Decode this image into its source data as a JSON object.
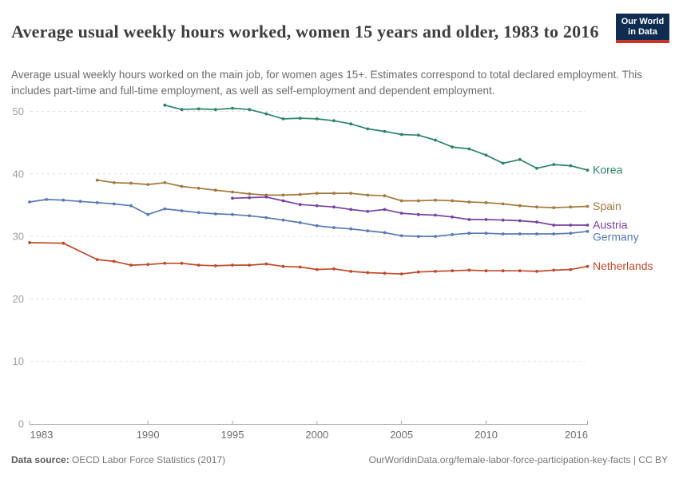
{
  "header": {
    "title": "Average usual weekly hours worked, women 15 years and older, 1983 to 2016",
    "subtitle": "Average usual weekly hours worked on the main job, for women ages 15+. Estimates correspond to total declared employment. This includes part-time and full-time employment, as well as self-employment and dependent employment.",
    "logo": {
      "line1": "Our World",
      "line2": "in Data",
      "bg_color": "#0e2d51",
      "stripe_color": "#c9352b"
    }
  },
  "footer": {
    "datasource_label": "Data source:",
    "datasource_value": " OECD Labor Force Statistics (2017)",
    "url_text": "OurWorldinData.org/female-labor-force-participation-key-facts | CC BY"
  },
  "chart_data": {
    "type": "line",
    "title": "Average usual weekly hours worked, women 15 years and older, 1983 to 2016",
    "xlabel": "",
    "ylabel": "",
    "xlim": [
      1983,
      2016
    ],
    "ylim": [
      0,
      52
    ],
    "yticks": [
      0,
      10,
      20,
      30,
      40,
      50
    ],
    "xticks": [
      1983,
      1990,
      1995,
      2000,
      2005,
      2010,
      2016
    ],
    "grid": "horizontal-dashed",
    "legend_position": "labels-at-line-ends",
    "colors": {
      "gridline": "#dedede",
      "axis": "#a6a6a6",
      "ytick_label": "#9e9e9e",
      "xtick_label": "#6f6f6f"
    },
    "series": [
      {
        "name": "Korea",
        "color": "#2c8465",
        "points": [
          [
            1991,
            51.0
          ],
          [
            1992,
            50.3
          ],
          [
            1993,
            50.4
          ],
          [
            1994,
            50.3
          ],
          [
            1995,
            50.5
          ],
          [
            1996,
            50.3
          ],
          [
            1997,
            49.6
          ],
          [
            1998,
            48.8
          ],
          [
            1999,
            48.9
          ],
          [
            2000,
            48.8
          ],
          [
            2001,
            48.5
          ],
          [
            2002,
            48.0
          ],
          [
            2003,
            47.2
          ],
          [
            2004,
            46.8
          ],
          [
            2005,
            46.3
          ],
          [
            2006,
            46.2
          ],
          [
            2007,
            45.4
          ],
          [
            2008,
            44.3
          ],
          [
            2009,
            44.0
          ],
          [
            2010,
            43.0
          ],
          [
            2011,
            41.7
          ],
          [
            2012,
            42.3
          ],
          [
            2013,
            40.9
          ],
          [
            2014,
            41.5
          ],
          [
            2015,
            41.3
          ],
          [
            2016,
            40.6
          ]
        ]
      },
      {
        "name": "Spain",
        "color": "#a2793d",
        "points": [
          [
            1987,
            39.0
          ],
          [
            1988,
            38.6
          ],
          [
            1989,
            38.5
          ],
          [
            1990,
            38.3
          ],
          [
            1991,
            38.6
          ],
          [
            1992,
            38.0
          ],
          [
            1993,
            37.7
          ],
          [
            1994,
            37.4
          ],
          [
            1995,
            37.1
          ],
          [
            1996,
            36.8
          ],
          [
            1997,
            36.6
          ],
          [
            1998,
            36.6
          ],
          [
            1999,
            36.7
          ],
          [
            2000,
            36.9
          ],
          [
            2001,
            36.9
          ],
          [
            2002,
            36.9
          ],
          [
            2003,
            36.6
          ],
          [
            2004,
            36.5
          ],
          [
            2005,
            35.7
          ],
          [
            2006,
            35.7
          ],
          [
            2007,
            35.8
          ],
          [
            2008,
            35.7
          ],
          [
            2009,
            35.5
          ],
          [
            2010,
            35.4
          ],
          [
            2011,
            35.2
          ],
          [
            2012,
            34.9
          ],
          [
            2013,
            34.7
          ],
          [
            2014,
            34.6
          ],
          [
            2015,
            34.7
          ],
          [
            2016,
            34.8
          ]
        ]
      },
      {
        "name": "Austria",
        "color": "#7940a1",
        "points": [
          [
            1995,
            36.1
          ],
          [
            1996,
            36.2
          ],
          [
            1997,
            36.3
          ],
          [
            1998,
            35.7
          ],
          [
            1999,
            35.1
          ],
          [
            2000,
            34.9
          ],
          [
            2001,
            34.7
          ],
          [
            2002,
            34.3
          ],
          [
            2003,
            34.0
          ],
          [
            2004,
            34.3
          ],
          [
            2005,
            33.7
          ],
          [
            2006,
            33.5
          ],
          [
            2007,
            33.4
          ],
          [
            2008,
            33.1
          ],
          [
            2009,
            32.7
          ],
          [
            2010,
            32.7
          ],
          [
            2011,
            32.6
          ],
          [
            2012,
            32.5
          ],
          [
            2013,
            32.3
          ],
          [
            2014,
            31.8
          ],
          [
            2015,
            31.8
          ],
          [
            2016,
            31.8
          ]
        ]
      },
      {
        "name": "Germany",
        "color": "#5879b4",
        "points": [
          [
            1983,
            35.5
          ],
          [
            1984,
            35.9
          ],
          [
            1985,
            35.8
          ],
          [
            1986,
            35.6
          ],
          [
            1987,
            35.4
          ],
          [
            1988,
            35.2
          ],
          [
            1989,
            34.9
          ],
          [
            1990,
            33.5
          ],
          [
            1991,
            34.4
          ],
          [
            1992,
            34.1
          ],
          [
            1993,
            33.8
          ],
          [
            1994,
            33.6
          ],
          [
            1995,
            33.5
          ],
          [
            1996,
            33.3
          ],
          [
            1997,
            33.0
          ],
          [
            1998,
            32.6
          ],
          [
            1999,
            32.2
          ],
          [
            2000,
            31.7
          ],
          [
            2001,
            31.4
          ],
          [
            2002,
            31.2
          ],
          [
            2003,
            30.9
          ],
          [
            2004,
            30.6
          ],
          [
            2005,
            30.1
          ],
          [
            2006,
            30.0
          ],
          [
            2007,
            30.0
          ],
          [
            2008,
            30.3
          ],
          [
            2009,
            30.5
          ],
          [
            2010,
            30.5
          ],
          [
            2011,
            30.4
          ],
          [
            2012,
            30.4
          ],
          [
            2013,
            30.4
          ],
          [
            2014,
            30.4
          ],
          [
            2015,
            30.5
          ],
          [
            2016,
            30.8
          ]
        ]
      },
      {
        "name": "Netherlands",
        "color": "#bf4a2b",
        "points": [
          [
            1983,
            29.0
          ],
          [
            1985,
            28.9
          ],
          [
            1987,
            26.3
          ],
          [
            1988,
            26.0
          ],
          [
            1989,
            25.4
          ],
          [
            1990,
            25.5
          ],
          [
            1991,
            25.7
          ],
          [
            1992,
            25.7
          ],
          [
            1993,
            25.4
          ],
          [
            1994,
            25.3
          ],
          [
            1995,
            25.4
          ],
          [
            1996,
            25.4
          ],
          [
            1997,
            25.6
          ],
          [
            1998,
            25.2
          ],
          [
            1999,
            25.1
          ],
          [
            2000,
            24.7
          ],
          [
            2001,
            24.8
          ],
          [
            2002,
            24.4
          ],
          [
            2003,
            24.2
          ],
          [
            2004,
            24.1
          ],
          [
            2005,
            24.0
          ],
          [
            2006,
            24.3
          ],
          [
            2007,
            24.4
          ],
          [
            2008,
            24.5
          ],
          [
            2009,
            24.6
          ],
          [
            2010,
            24.5
          ],
          [
            2011,
            24.5
          ],
          [
            2012,
            24.5
          ],
          [
            2013,
            24.4
          ],
          [
            2014,
            24.6
          ],
          [
            2015,
            24.7
          ],
          [
            2016,
            25.2
          ]
        ]
      }
    ]
  }
}
